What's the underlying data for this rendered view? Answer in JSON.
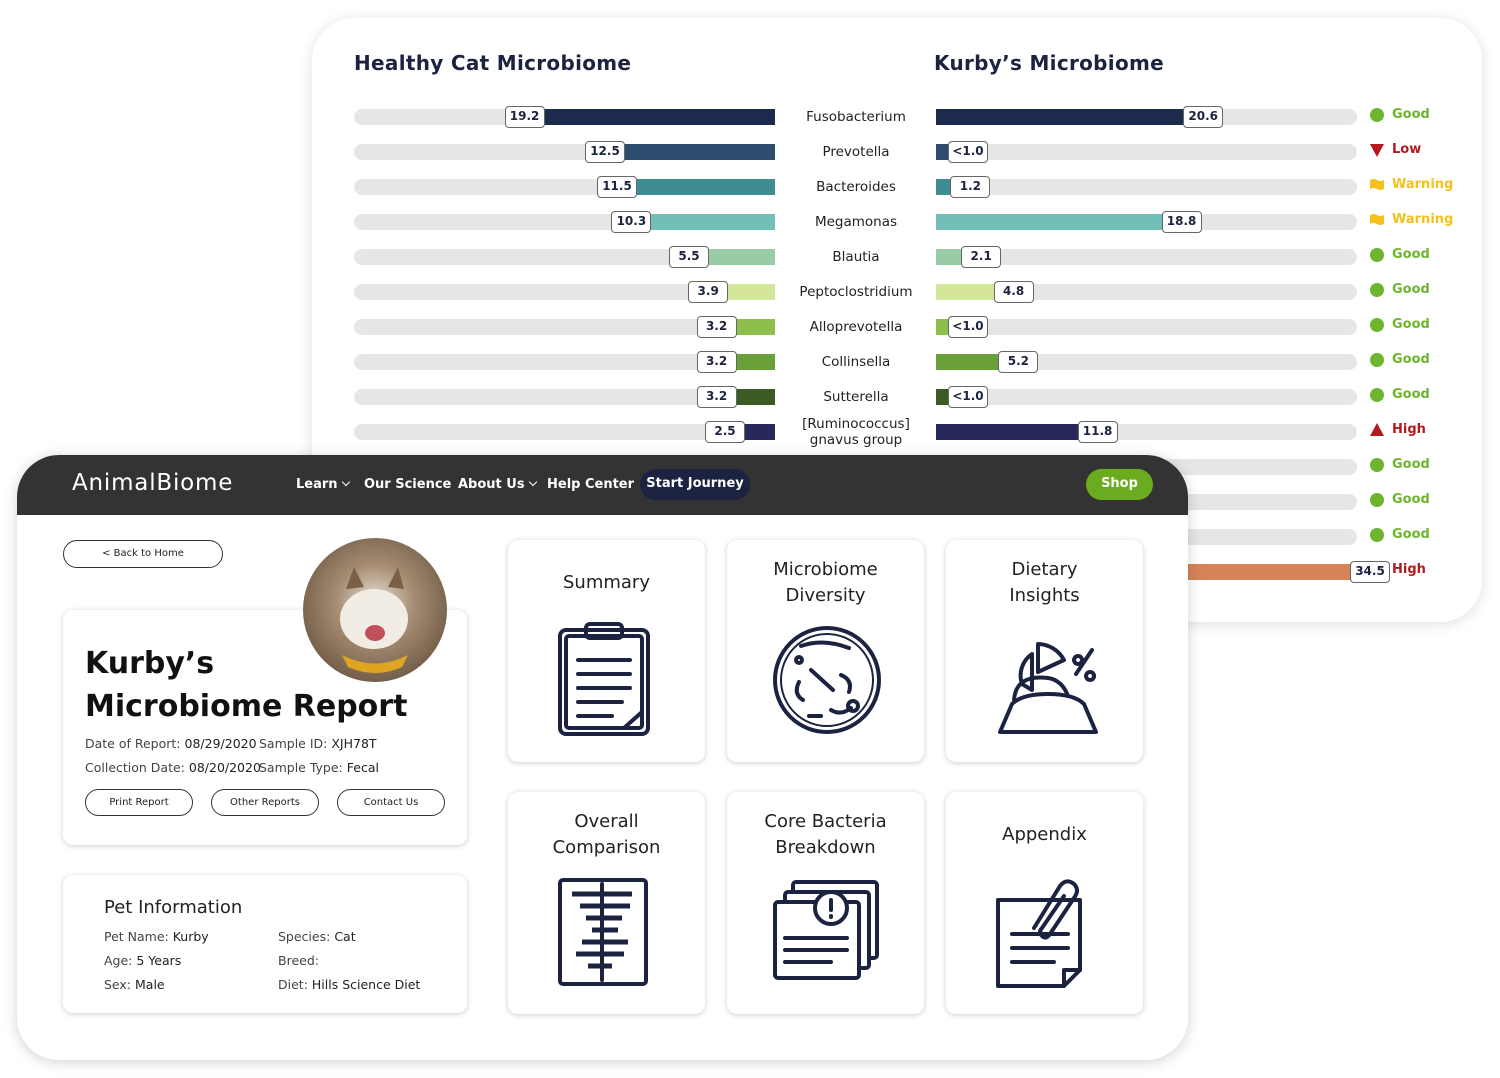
{
  "chart": {
    "healthy_title": "Healthy Cat Microbiome",
    "kurby_title": "Kurby’s Microbiome",
    "rows": [
      {
        "name": "Fusobacterium",
        "healthy": 19.2,
        "kurby": 20.6,
        "color": "#1c2b4d",
        "status": {
          "label": "Good",
          "color": "#6cb52d",
          "icon": "circle"
        }
      },
      {
        "name": "Prevotella",
        "healthy": 12.5,
        "kurby": 1,
        "kurby_label": "<1.0",
        "color": "#2e4d6e",
        "status": {
          "label": "Low",
          "color": "#b3191f",
          "icon": "down"
        }
      },
      {
        "name": "Bacteroides",
        "healthy": 11.5,
        "kurby": 1.2,
        "color": "#3f8c93",
        "status": {
          "label": "Warning",
          "color": "#f4c21b",
          "icon": "flag"
        }
      },
      {
        "name": "Megamonas",
        "healthy": 10.3,
        "kurby": 18.8,
        "color": "#72bfba",
        "status": {
          "label": "Warning",
          "color": "#f4c21b",
          "icon": "flag"
        }
      },
      {
        "name": "Blautia",
        "healthy": 5.5,
        "kurby": 2.1,
        "color": "#97cca4",
        "status": {
          "label": "Good",
          "color": "#6cb52d",
          "icon": "circle"
        }
      },
      {
        "name": "Peptoclostridium",
        "healthy": 3.9,
        "kurby": 4.8,
        "color": "#d3e69a",
        "status": {
          "label": "Good",
          "color": "#6cb52d",
          "icon": "circle"
        }
      },
      {
        "name": "Alloprevotella",
        "healthy": 3.2,
        "kurby": 1,
        "kurby_label": "<1.0",
        "color": "#8ebf4d",
        "status": {
          "label": "Good",
          "color": "#6cb52d",
          "icon": "circle"
        }
      },
      {
        "name": "Collinsella",
        "healthy": 3.2,
        "kurby": 5.2,
        "color": "#69a03a",
        "status": {
          "label": "Good",
          "color": "#6cb52d",
          "icon": "circle"
        }
      },
      {
        "name": "Sutterella",
        "healthy": 3.2,
        "kurby": 1,
        "kurby_label": "<1.0",
        "color": "#3c5b24",
        "status": {
          "label": "Good",
          "color": "#6cb52d",
          "icon": "circle"
        }
      },
      {
        "name": "[Ruminococcus] gnavus group",
        "healthy": 2.5,
        "kurby": 11.8,
        "color": "#29285a",
        "status": {
          "label": "High",
          "color": "#b3191f",
          "icon": "up"
        }
      },
      {
        "status": {
          "label": "Good",
          "color": "#6cb52d",
          "icon": "circle"
        }
      },
      {
        "status": {
          "label": "Good",
          "color": "#6cb52d",
          "icon": "circle"
        }
      },
      {
        "status": {
          "label": "Good",
          "color": "#6cb52d",
          "icon": "circle"
        }
      },
      {
        "kurby": 34.5,
        "color": "#d98359",
        "status": {
          "label": "High",
          "color": "#b3191f",
          "icon": "up"
        }
      }
    ]
  },
  "nav": {
    "logo": "AnimalBiome",
    "items": [
      "Learn",
      "Our Science",
      "About Us",
      "Help Center"
    ],
    "cta": "Start Journey",
    "shop": "Shop"
  },
  "report": {
    "back": "< Back to Home",
    "title": "Kurby’s Microbiome Report",
    "fields": [
      {
        "label": "Date of Report:",
        "value": "08/29/2020"
      },
      {
        "label": "Sample ID:",
        "value": "XJH78T"
      },
      {
        "label": "Collection Date:",
        "value": "08/20/2020"
      },
      {
        "label": "Sample Type:",
        "value": "Fecal"
      }
    ],
    "buttons": [
      "Print Report",
      "Other Reports",
      "Contact Us"
    ]
  },
  "pet_info": {
    "title": "Pet Information",
    "fields": [
      {
        "label": "Pet Name:",
        "value": "Kurby"
      },
      {
        "label": "Species:",
        "value": "Cat"
      },
      {
        "label": "Age:",
        "value": "5 Years"
      },
      {
        "label": "Breed:"
      },
      {
        "label": "Sex:",
        "value": "Male"
      },
      {
        "label": "Diet:",
        "value": "Hills Science Diet"
      }
    ]
  },
  "tiles": [
    "Summary",
    "Microbiome Diversity",
    "Dietary Insights",
    "Overall Comparison",
    "Core Bacteria Breakdown",
    "Appendix"
  ]
}
